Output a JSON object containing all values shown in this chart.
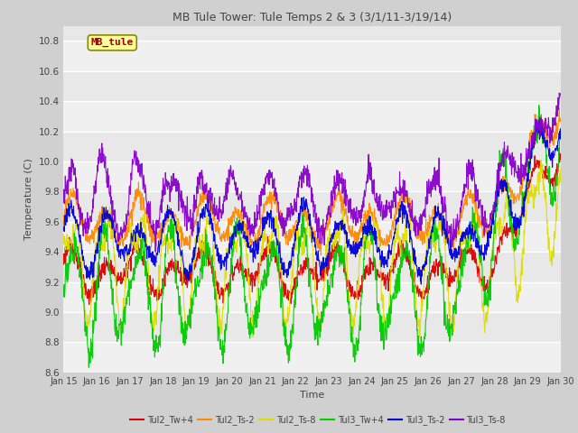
{
  "title": "MB Tule Tower: Tule Temps 2 & 3 (3/1/11-3/19/14)",
  "xlabel": "Time",
  "ylabel": "Temperature (C)",
  "ylim": [
    8.6,
    10.9
  ],
  "yticks": [
    8.6,
    8.8,
    9.0,
    9.2,
    9.4,
    9.6,
    9.8,
    10.0,
    10.2,
    10.4,
    10.6,
    10.8
  ],
  "plot_bg": "#e8e8e8",
  "fig_bg": "#d0d0d0",
  "legend_label": "MB_tule",
  "legend_text_color": "#990000",
  "legend_box_color": "#ffff99",
  "series": [
    {
      "name": "Tul2_Tw+4",
      "color": "#dd0000"
    },
    {
      "name": "Tul2_Ts-2",
      "color": "#ff8800"
    },
    {
      "name": "Tul2_Ts-8",
      "color": "#dddd00"
    },
    {
      "name": "Tul3_Tw+4",
      "color": "#00cc00"
    },
    {
      "name": "Tul3_Ts-2",
      "color": "#0000dd"
    },
    {
      "name": "Tul3_Ts-8",
      "color": "#8800cc"
    }
  ],
  "xtick_labels": [
    "Jan 15",
    "Jan 16",
    "Jan 17",
    "Jan 18",
    "Jan 19",
    "Jan 20",
    "Jan 21",
    "Jan 22",
    "Jan 23",
    "Jan 24",
    "Jan 25",
    "Jan 26",
    "Jan 27",
    "Jan 28",
    "Jan 29",
    "Jan 30"
  ],
  "n_points": 1440,
  "days": 15
}
